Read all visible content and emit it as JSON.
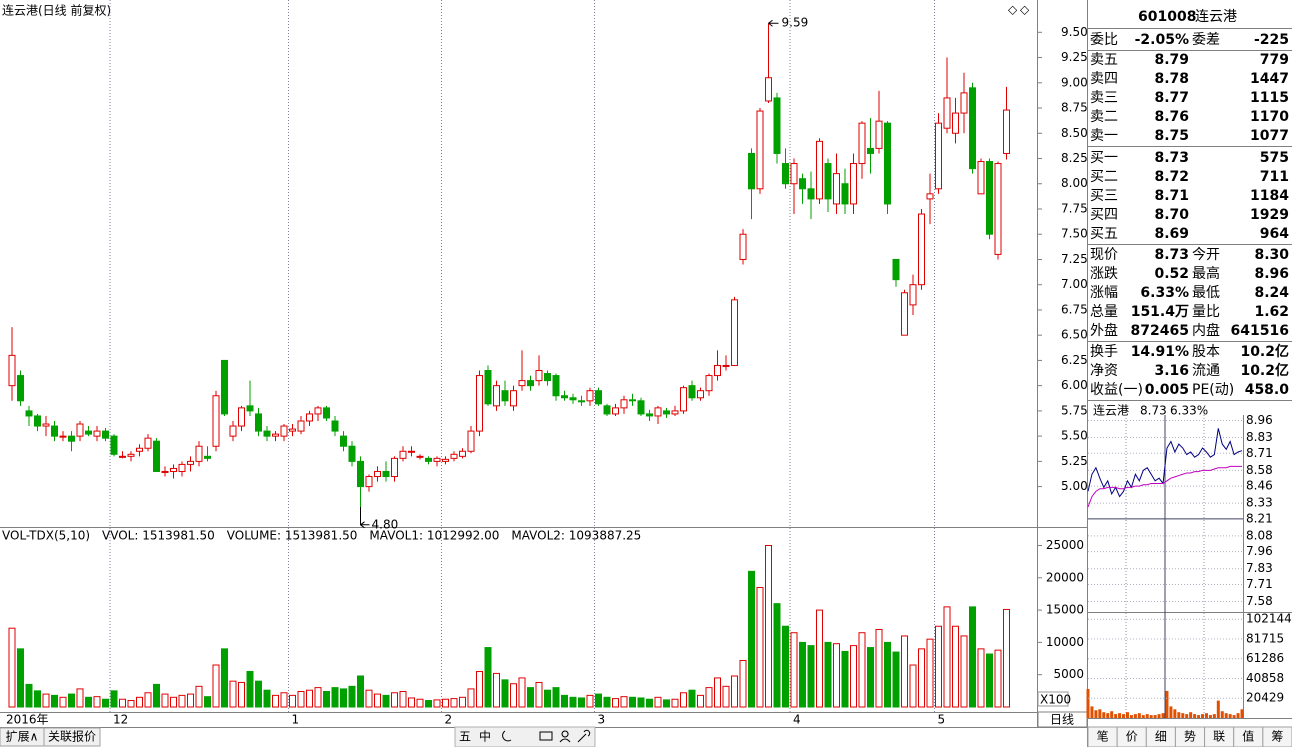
{
  "chart_data": [
    {
      "type": "candlestick",
      "title": "连云港(日线 前复权)",
      "categories": [
        "2016年",
        null,
        null,
        null,
        null,
        null,
        null,
        null,
        null,
        null,
        null,
        null,
        "12",
        null,
        null,
        null,
        null,
        null,
        null,
        null,
        null,
        null,
        null,
        null,
        null,
        null,
        null,
        null,
        null,
        null,
        null,
        null,
        null,
        "1",
        null,
        null,
        null,
        null,
        null,
        null,
        null,
        null,
        null,
        null,
        null,
        null,
        null,
        null,
        null,
        null,
        null,
        "2",
        null,
        null,
        null,
        null,
        null,
        null,
        null,
        null,
        null,
        null,
        null,
        null,
        null,
        null,
        null,
        null,
        null,
        "3",
        null,
        null,
        null,
        null,
        null,
        null,
        null,
        null,
        null,
        null,
        null,
        null,
        null,
        null,
        null,
        null,
        null,
        null,
        null,
        null,
        null,
        null,
        "4",
        null,
        null,
        null,
        null,
        null,
        null,
        null,
        null,
        null,
        null,
        null,
        null,
        null,
        null,
        null,
        null,
        "5",
        null,
        null,
        null,
        null,
        null,
        null,
        null,
        null
      ],
      "open": [
        6.0,
        6.1,
        5.75,
        5.7,
        5.6,
        5.6,
        5.5,
        5.5,
        5.5,
        5.55,
        5.5,
        5.55,
        5.5,
        5.3,
        5.3,
        5.35,
        5.38,
        5.45,
        5.15,
        5.15,
        5.15,
        5.22,
        5.25,
        5.3,
        5.4,
        6.25,
        5.5,
        5.6,
        5.8,
        5.72,
        5.55,
        5.5,
        5.5,
        5.55,
        5.55,
        5.65,
        5.72,
        5.78,
        5.65,
        5.5,
        5.4,
        5.25,
        5.0,
        5.1,
        5.15,
        5.1,
        5.28,
        5.35,
        5.3,
        5.28,
        5.25,
        5.25,
        5.28,
        5.3,
        5.35,
        5.55,
        6.15,
        5.8,
        5.95,
        5.8,
        6.0,
        6.05,
        6.05,
        6.12,
        6.1,
        5.9,
        5.88,
        5.85,
        5.85,
        5.95,
        5.8,
        5.72,
        5.78,
        5.86,
        5.85,
        5.72,
        5.7,
        5.75,
        5.72,
        5.75,
        6.0,
        5.88,
        5.95,
        6.1,
        6.2,
        6.2,
        7.25,
        8.3,
        7.95,
        8.82,
        8.85,
        8.2,
        8.0,
        8.05,
        7.95,
        7.85,
        8.2,
        7.8,
        8.0,
        7.8,
        8.2,
        8.35,
        8.35,
        8.6,
        7.25,
        6.5,
        6.8,
        7.0,
        7.85,
        7.95,
        8.55,
        8.5,
        8.7,
        8.95,
        7.9,
        8.22,
        7.3,
        8.3
      ],
      "high": [
        6.58,
        6.15,
        5.8,
        5.72,
        5.7,
        5.65,
        5.55,
        5.55,
        5.65,
        5.6,
        5.6,
        5.58,
        5.52,
        5.35,
        5.35,
        5.42,
        5.52,
        5.48,
        5.2,
        5.22,
        5.25,
        5.3,
        5.45,
        5.4,
        5.95,
        6.25,
        5.65,
        5.8,
        6.05,
        5.78,
        5.6,
        5.55,
        5.62,
        5.62,
        5.7,
        5.75,
        5.8,
        5.8,
        5.7,
        5.55,
        5.45,
        5.3,
        5.12,
        5.2,
        5.25,
        5.3,
        5.4,
        5.4,
        5.32,
        5.3,
        5.3,
        5.3,
        5.35,
        5.38,
        5.6,
        6.15,
        6.2,
        6.05,
        6.05,
        6.0,
        6.35,
        6.1,
        6.3,
        6.15,
        6.12,
        5.95,
        5.92,
        5.9,
        5.98,
        5.98,
        5.82,
        5.82,
        5.9,
        5.92,
        5.88,
        5.76,
        5.8,
        5.78,
        5.8,
        6.0,
        6.05,
        5.98,
        6.12,
        6.35,
        6.3,
        6.88,
        7.55,
        8.35,
        8.75,
        9.59,
        8.9,
        8.35,
        8.25,
        8.1,
        8.12,
        8.45,
        8.25,
        8.3,
        8.15,
        8.3,
        8.62,
        8.65,
        8.92,
        8.62,
        7.25,
        6.95,
        7.1,
        7.75,
        8.1,
        8.7,
        9.25,
        8.85,
        9.1,
        9.0,
        8.25,
        8.25,
        8.22,
        8.96
      ],
      "low": [
        5.85,
        5.8,
        5.6,
        5.55,
        5.5,
        5.45,
        5.45,
        5.35,
        5.45,
        5.5,
        5.45,
        5.45,
        5.3,
        5.28,
        5.25,
        5.3,
        5.35,
        5.15,
        5.1,
        5.08,
        5.1,
        5.15,
        5.2,
        5.25,
        5.35,
        5.7,
        5.45,
        5.55,
        5.7,
        5.5,
        5.45,
        5.45,
        5.45,
        5.5,
        5.52,
        5.6,
        5.65,
        5.65,
        5.5,
        5.35,
        5.2,
        4.8,
        4.95,
        5.05,
        5.05,
        5.05,
        5.25,
        5.3,
        5.27,
        5.22,
        5.2,
        5.22,
        5.25,
        5.28,
        5.33,
        5.5,
        5.8,
        5.75,
        5.8,
        5.75,
        5.95,
        5.95,
        6.0,
        6.0,
        5.85,
        5.85,
        5.82,
        5.8,
        5.8,
        5.8,
        5.7,
        5.7,
        5.72,
        5.8,
        5.7,
        5.65,
        5.62,
        5.68,
        5.7,
        5.72,
        5.85,
        5.85,
        5.9,
        6.05,
        6.15,
        6.2,
        7.2,
        7.65,
        7.9,
        8.8,
        8.2,
        7.95,
        7.7,
        7.8,
        7.65,
        7.8,
        7.72,
        7.7,
        7.7,
        7.7,
        8.05,
        8.1,
        8.3,
        7.7,
        6.98,
        6.5,
        6.7,
        6.95,
        7.6,
        7.9,
        8.5,
        8.4,
        8.5,
        8.1,
        7.9,
        7.45,
        7.25,
        8.24
      ],
      "close": [
        6.3,
        5.85,
        5.7,
        5.6,
        5.62,
        5.5,
        5.5,
        5.45,
        5.62,
        5.52,
        5.55,
        5.48,
        5.32,
        5.3,
        5.32,
        5.38,
        5.48,
        5.15,
        5.15,
        5.18,
        5.22,
        5.25,
        5.4,
        5.28,
        5.9,
        5.72,
        5.6,
        5.78,
        5.75,
        5.55,
        5.5,
        5.52,
        5.6,
        5.57,
        5.65,
        5.72,
        5.78,
        5.68,
        5.55,
        5.4,
        5.25,
        5.0,
        5.1,
        5.15,
        5.1,
        5.28,
        5.35,
        5.35,
        5.3,
        5.25,
        5.28,
        5.27,
        5.32,
        5.35,
        5.55,
        6.1,
        5.82,
        6.0,
        5.85,
        5.95,
        6.05,
        6.0,
        6.15,
        6.05,
        5.9,
        5.88,
        5.86,
        5.84,
        5.95,
        5.82,
        5.72,
        5.78,
        5.86,
        5.85,
        5.72,
        5.7,
        5.78,
        5.72,
        5.75,
        5.98,
        5.88,
        5.95,
        6.1,
        6.2,
        6.2,
        6.85,
        7.5,
        7.95,
        8.72,
        9.05,
        8.3,
        8.0,
        8.2,
        7.95,
        7.85,
        8.42,
        7.85,
        8.1,
        7.8,
        8.2,
        8.6,
        8.3,
        8.62,
        7.8,
        7.05,
        6.92,
        7.0,
        7.7,
        7.9,
        8.6,
        8.85,
        8.7,
        8.9,
        8.15,
        8.22,
        7.5,
        8.2,
        8.73
      ],
      "up_color": "#e00000",
      "down_color": "#00a000",
      "high_label": "9.59",
      "low_label": "4.80",
      "ylim": [
        4.6,
        9.82
      ],
      "yticks": [
        {
          "value": 5.0,
          "label": "5.00"
        },
        {
          "value": 5.25,
          "label": "5.25"
        },
        {
          "value": 5.5,
          "label": "5.50"
        },
        {
          "value": 5.75,
          "label": "5.75"
        },
        {
          "value": 6.0,
          "label": "6.00"
        },
        {
          "value": 6.25,
          "label": "6.25"
        },
        {
          "value": 6.5,
          "label": "6.50"
        },
        {
          "value": 6.75,
          "label": "6.75"
        },
        {
          "value": 7.0,
          "label": "7.00"
        },
        {
          "value": 7.25,
          "label": "7.25"
        },
        {
          "value": 7.5,
          "label": "7.50"
        },
        {
          "value": 7.75,
          "label": "7.75"
        },
        {
          "value": 8.0,
          "label": "8.00"
        },
        {
          "value": 8.25,
          "label": "8.25"
        },
        {
          "value": 8.5,
          "label": "8.50"
        },
        {
          "value": 8.75,
          "label": "8.75"
        },
        {
          "value": 9.0,
          "label": "9.00"
        },
        {
          "value": 9.25,
          "label": "9.25"
        },
        {
          "value": 9.5,
          "label": "9.50"
        }
      ],
      "period_button": "日线"
    },
    {
      "type": "bar",
      "header": [
        "VOL-TDX(5,10)",
        "VVOL: 1513981.50",
        "VOLUME: 1513981.50",
        "MAVOL1: 1012992.00",
        "MAVOL2: 1093887.25"
      ],
      "header_colors": [
        "#000000",
        "#000080",
        "#c000c0",
        "#c000c0",
        "#808080"
      ],
      "values": [
        12200,
        9000,
        3500,
        2500,
        2000,
        1800,
        1500,
        2000,
        2800,
        1500,
        1600,
        1200,
        2500,
        1200,
        1000,
        1500,
        2200,
        3500,
        2000,
        1500,
        1800,
        2000,
        3200,
        1600,
        6500,
        9000,
        4000,
        3800,
        5500,
        4000,
        2600,
        1800,
        2200,
        1800,
        2400,
        2600,
        3000,
        2400,
        3000,
        2800,
        3200,
        4800,
        2600,
        2000,
        1800,
        2200,
        2400,
        1400,
        1200,
        1000,
        1100,
        1200,
        1300,
        1500,
        2800,
        5500,
        9200,
        5200,
        4200,
        3600,
        4500,
        3000,
        3800,
        2600,
        3000,
        1800,
        1500,
        1400,
        1800,
        2000,
        1500,
        1300,
        1600,
        1500,
        1400,
        1200,
        1500,
        1100,
        1200,
        2200,
        2600,
        1800,
        3000,
        4500,
        3200,
        4800,
        7200,
        21000,
        18500,
        25000,
        16000,
        12500,
        11500,
        10000,
        9500,
        15000,
        10000,
        9800,
        8600,
        9500,
        11500,
        9200,
        12000,
        10000,
        8500,
        11000,
        6500,
        9000,
        10500,
        12500,
        15500,
        12500,
        11000,
        15500,
        9000,
        8200,
        8800,
        15100
      ],
      "ylim": [
        0,
        27400
      ],
      "yticks": [
        5000,
        10000,
        15000,
        20000,
        25000
      ],
      "unit_label": "X100"
    },
    {
      "type": "line",
      "title": "连云港",
      "price_label": "8.73",
      "change_label": "6.33%",
      "series": [
        {
          "color": "#000080",
          "values": [
            8.42,
            8.55,
            8.6,
            8.52,
            8.45,
            8.5,
            8.4,
            8.45,
            8.38,
            8.42,
            8.5,
            8.45,
            8.55,
            8.5,
            8.58,
            8.6,
            8.55,
            8.5,
            8.52,
            8.48,
            8.75,
            8.8,
            8.72,
            8.78,
            8.75,
            8.7,
            8.72,
            8.68,
            8.7,
            8.75,
            8.72,
            8.68,
            8.7,
            8.9,
            8.78,
            8.74,
            8.8,
            8.7,
            8.72,
            8.73
          ]
        },
        {
          "color": "#c000c0",
          "values": [
            8.3,
            8.38,
            8.42,
            8.44,
            8.44,
            8.45,
            8.45,
            8.45,
            8.44,
            8.44,
            8.45,
            8.45,
            8.46,
            8.46,
            8.47,
            8.47,
            8.48,
            8.48,
            8.48,
            8.48,
            8.5,
            8.52,
            8.53,
            8.54,
            8.55,
            8.56,
            8.56,
            8.57,
            8.57,
            8.58,
            8.58,
            8.58,
            8.59,
            8.6,
            8.6,
            8.6,
            8.61,
            8.61,
            8.61,
            8.61
          ]
        }
      ],
      "ylim": [
        7.5,
        9.04
      ],
      "yticks": [
        8.96,
        8.83,
        8.71,
        8.58,
        8.46,
        8.33,
        8.21,
        8.08,
        7.96,
        7.83,
        7.71,
        7.58
      ]
    },
    {
      "type": "bar",
      "color": "#e05000",
      "values": [
        30000,
        12000,
        8000,
        9000,
        6000,
        5000,
        7000,
        4000,
        5000,
        4000,
        6000,
        3000,
        4000,
        5000,
        3000,
        4000,
        3000,
        3000,
        4000,
        5000,
        28000,
        12000,
        9000,
        6000,
        5000,
        4000,
        6000,
        4000,
        3000,
        4000,
        5000,
        3000,
        4000,
        18000,
        7000,
        5000,
        4000,
        3000,
        5000,
        9000
      ],
      "ylim": [
        0,
        109600
      ],
      "yticks": [
        102144,
        81715,
        61286,
        40858,
        20429
      ]
    }
  ],
  "quote": {
    "code": "601008",
    "name": "连云港",
    "ratio": [
      "委比",
      "-2.05%",
      "委差",
      "-225"
    ],
    "asks": [
      [
        "卖五",
        "8.79",
        "779"
      ],
      [
        "卖四",
        "8.78",
        "1447"
      ],
      [
        "卖三",
        "8.77",
        "1115"
      ],
      [
        "卖二",
        "8.76",
        "1170"
      ],
      [
        "卖一",
        "8.75",
        "1077"
      ]
    ],
    "bids": [
      [
        "买一",
        "8.73",
        "575"
      ],
      [
        "买二",
        "8.72",
        "711"
      ],
      [
        "买三",
        "8.71",
        "1184"
      ],
      [
        "买四",
        "8.70",
        "1929"
      ],
      [
        "买五",
        "8.69",
        "964"
      ]
    ],
    "stats": [
      [
        "现价",
        "8.73",
        "今开",
        "8.30"
      ],
      [
        "涨跌",
        "0.52",
        "最高",
        "8.96"
      ],
      [
        "涨幅",
        "6.33%",
        "最低",
        "8.24"
      ],
      [
        "总量",
        "151.4万",
        "量比",
        "1.62"
      ],
      [
        "外盘",
        "872465",
        "内盘",
        "641516"
      ]
    ],
    "finance": [
      [
        "换手",
        "14.91%",
        "股本",
        "10.2亿"
      ],
      [
        "净资",
        "3.16",
        "流通",
        "10.2亿"
      ],
      [
        "收益(一)",
        "0.005",
        "PE(动)",
        "458.0"
      ]
    ]
  },
  "bottom_tabs_left": [
    "扩展∧",
    "关联报价"
  ],
  "toolbar": [
    "五",
    "中"
  ],
  "bottom_tabs_right": [
    "笔",
    "价",
    "细",
    "势",
    "联",
    "值",
    "筹"
  ]
}
